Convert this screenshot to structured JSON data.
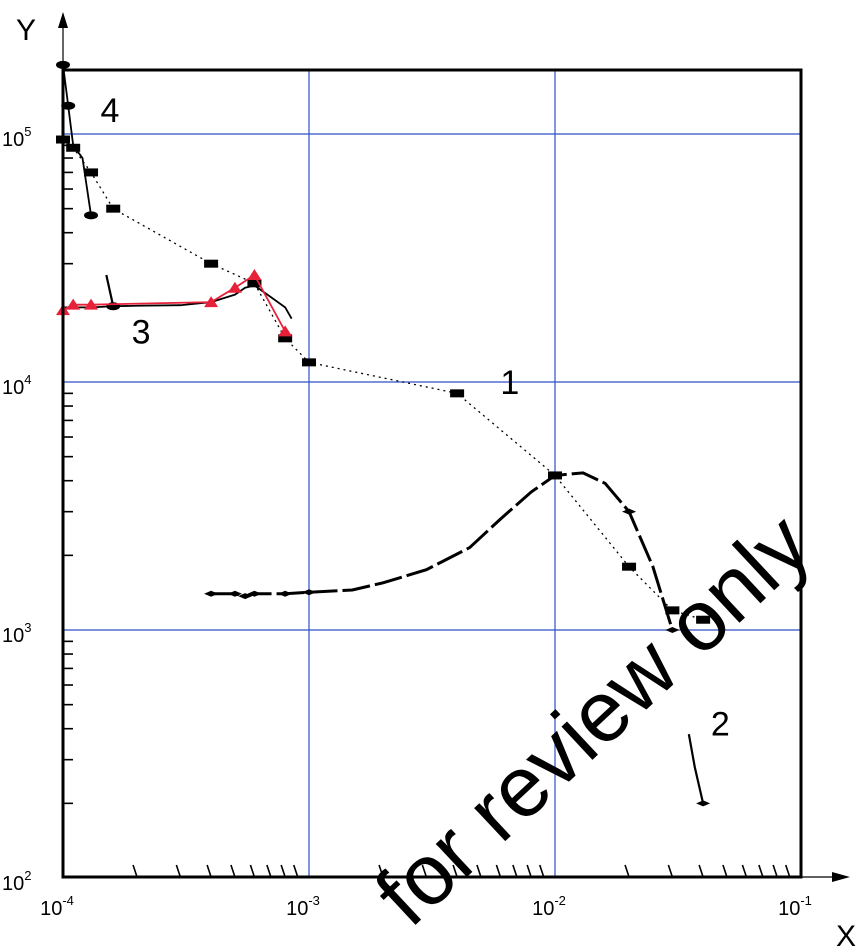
{
  "chart_data": {
    "type": "scatter",
    "title": "",
    "xlabel": "X",
    "ylabel": "Y",
    "xscale": "log",
    "yscale": "log",
    "xlim": [
      0.0001,
      0.1
    ],
    "ylim": [
      100,
      200000
    ],
    "grid": true,
    "x_tick_labels": [
      {
        "base": "10",
        "exp": "-4",
        "value": 0.0001
      },
      {
        "base": "10",
        "exp": "-3",
        "value": 0.001
      },
      {
        "base": "10",
        "exp": "-2",
        "value": 0.01
      },
      {
        "base": "10",
        "exp": "-1",
        "value": 0.1
      }
    ],
    "y_tick_labels": [
      {
        "base": "10",
        "exp": "2",
        "value": 100
      },
      {
        "base": "10",
        "exp": "3",
        "value": 1000
      },
      {
        "base": "10",
        "exp": "4",
        "value": 10000
      },
      {
        "base": "10",
        "exp": "5",
        "value": 100000
      }
    ],
    "series": [
      {
        "label": "1",
        "color": "#000000",
        "line": "dotted",
        "marker": "rect",
        "x": [
          0.0001,
          0.00011,
          0.00013,
          0.00016,
          0.0004,
          0.0006,
          0.0008,
          0.001,
          0.004,
          0.01,
          0.02,
          0.03,
          0.04
        ],
        "y": [
          95000,
          88000,
          70000,
          50000,
          30000,
          25000,
          15000,
          12000,
          9000,
          4200,
          1800,
          1200,
          1100
        ]
      },
      {
        "label": "2",
        "color": "#000000",
        "line": "dashed",
        "marker": "diamond",
        "x": [
          0.0004,
          0.0005,
          0.00055,
          0.0006,
          0.0008,
          0.001,
          0.0015,
          0.002,
          0.003,
          0.0045,
          0.006,
          0.008,
          0.01,
          0.013,
          0.016,
          0.02,
          0.025,
          0.03
        ],
        "y": [
          1400,
          1400,
          1370,
          1400,
          1400,
          1420,
          1450,
          1550,
          1750,
          2150,
          2800,
          3600,
          4200,
          4300,
          3900,
          3000,
          1800,
          1000
        ],
        "extra_segment": {
          "x": [
            0.035,
            0.037,
            0.04
          ],
          "y": [
            380,
            280,
            200
          ]
        }
      },
      {
        "label": "3",
        "color": "#000000",
        "line": "solid",
        "marker": "ellipse",
        "x": [
          0.0001,
          0.00013,
          0.00016,
          0.0002,
          0.0003,
          0.0004,
          0.0005,
          0.00055,
          0.0006,
          0.0007,
          0.0008,
          0.00085
        ],
        "y": [
          20000,
          20000,
          20200,
          20300,
          20400,
          21000,
          22500,
          24000,
          24500,
          22000,
          20000,
          18000
        ],
        "extra_segment": {
          "x": [
            0.00015,
            0.00016
          ],
          "y": [
            27000,
            20200
          ]
        }
      },
      {
        "label": "",
        "color": "#e8213a",
        "line": "solid",
        "marker": "triangle",
        "x": [
          0.0001,
          0.00011,
          0.00013,
          0.0004,
          0.0005,
          0.0006,
          0.0008
        ],
        "y": [
          19500,
          20500,
          20500,
          21000,
          24000,
          27000,
          16000
        ]
      },
      {
        "label": "4",
        "color": "#000000",
        "line": "solid",
        "marker": "ellipse",
        "x": [
          0.0001,
          0.000105,
          0.00011,
          0.00012,
          0.00013
        ],
        "y": [
          190000,
          130000,
          90000,
          80000,
          47000
        ]
      }
    ],
    "annotations": [
      {
        "text": "1",
        "x": 0.006,
        "y": 10000
      },
      {
        "text": "2",
        "x": 0.043,
        "y": 420
      },
      {
        "text": "3",
        "x": 0.00019,
        "y": 16000
      },
      {
        "text": "4",
        "x": 0.000142,
        "y": 125000
      }
    ],
    "legend": "none"
  },
  "watermark_text": "for review only"
}
